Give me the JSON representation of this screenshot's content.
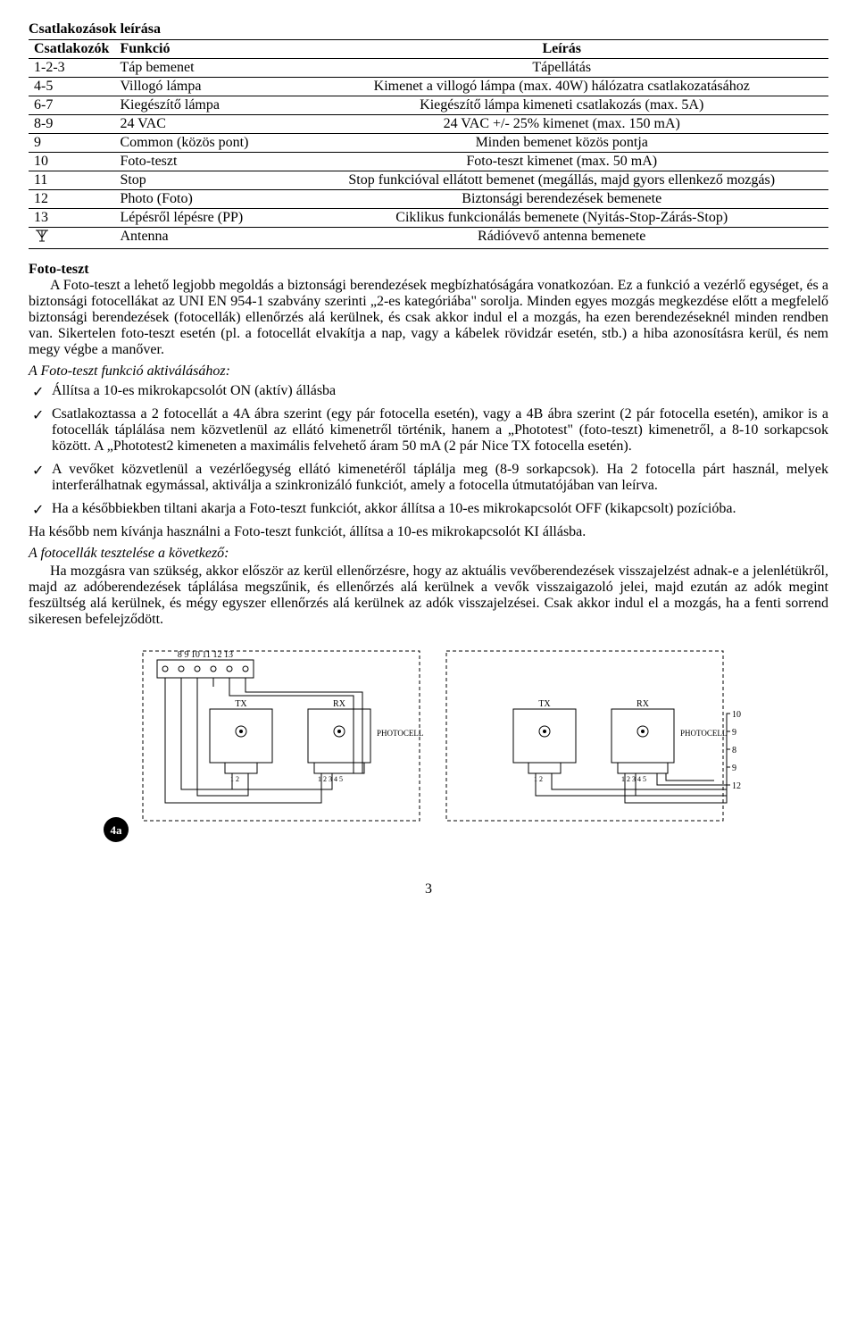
{
  "title": "Csatlakozások leírása",
  "table": {
    "headers": [
      "Csatlakozók",
      "Funkció",
      "Leírás"
    ],
    "rows": [
      {
        "c1": "1-2-3",
        "c2": "Táp bemenet",
        "c3": "Tápellátás"
      },
      {
        "c1": "4-5",
        "c2": "Villogó lámpa",
        "c3": "Kimenet a villogó lámpa (max. 40W) hálózatra csatlakozatásához"
      },
      {
        "c1": "6-7",
        "c2": "Kiegészítő lámpa",
        "c3": "Kiegészítő lámpa kimeneti csatlakozás (max. 5A)"
      },
      {
        "c1": "8-9",
        "c2": "24 VAC",
        "c3": "24 VAC +/- 25% kimenet (max. 150 mA)"
      },
      {
        "c1": "9",
        "c2": "Common (közös pont)",
        "c3": "Minden bemenet közös pontja"
      },
      {
        "c1": "10",
        "c2": "Foto-teszt",
        "c3": "Foto-teszt kimenet (max. 50 mA)"
      },
      {
        "c1": "11",
        "c2": "Stop",
        "c3": "Stop funkcióval ellátott bemenet (megállás, majd gyors ellenkező mozgás)"
      },
      {
        "c1": "12",
        "c2": "Photo (Foto)",
        "c3": "Biztonsági berendezések bemenete"
      },
      {
        "c1": "13",
        "c2": "Lépésről lépésre (PP)",
        "c3": "Ciklikus funkcionálás bemenete (Nyitás-Stop-Zárás-Stop)"
      },
      {
        "c1": "__ANTENNA__",
        "c2": "Antenna",
        "c3": "Rádióvevő antenna bemenete"
      }
    ]
  },
  "foto_heading": "Foto-teszt",
  "foto_p1": "A Foto-teszt a lehető legjobb megoldás a biztonsági berendezések megbízhatóságára vonatkozóan. Ez a funkció a vezérlő egységet, és a biztonsági fotocellákat az UNI EN 954-1 szabvány szerinti „2-es kategóriába\" sorolja. Minden egyes mozgás megkezdése előtt a megfelelő biztonsági berendezések (fotocellák) ellenőrzés alá kerülnek, és csak akkor indul el a mozgás, ha ezen berendezéseknél minden rendben van. Sikertelen foto-teszt esetén (pl. a fotocellát elvakítja a nap, vagy a kábelek rövidzár esetén, stb.) a hiba azonosításra kerül, és nem megy végbe a manőver.",
  "activ_title": "A Foto-teszt funkció aktiválásához:",
  "activ_items": [
    "Állítsa a 10-es mikrokapcsolót ON (aktív) állásba",
    "Csatlakoztassa a 2 fotocellát a 4A ábra szerint (egy pár fotocella esetén), vagy a 4B ábra szerint (2 pár fotocella esetén), amikor is a fotocellák táplálása nem közvetlenül az ellátó kimenetről történik, hanem a „Phototest\" (foto-teszt) kimenetről, a 8-10 sorkapcsok között. A „Phototest2 kimeneten a maximális felvehető áram 50 mA (2 pár Nice TX fotocella esetén).",
    "A vevőket közvetlenül a vezérlőegység ellátó kimenetéről táplálja meg (8-9 sorkapcsok). Ha 2 fotocella párt használ, melyek interferálhatnak egymással, aktiválja a szinkronizáló funkciót, amely a fotocella útmutatójában van leírva.",
    "Ha a későbbiekben tiltani akarja a Foto-teszt funkciót, akkor állítsa a 10-es mikrokapcsolót OFF (kikapcsolt) pozícióba."
  ],
  "after_list": "Ha később nem kívánja használni a Foto-teszt funkciót, állítsa a 10-es mikrokapcsolót KI állásba.",
  "test_title": "A fotocellák tesztelése a következő:",
  "test_p": "Ha mozgásra van szükség, akkor először az kerül ellenőrzésre, hogy az aktuális vevőberendezések visszajelzést adnak-e a jelenlétükről, majd az adóberendezések táplálása megszűnik, és ellenőrzés alá kerülnek a vevők visszaigazoló jelei, majd ezután az adók megint feszültség alá kerülnek, és mégy egyszer ellenőrzés alá kerülnek az adók visszajelzései. Csak akkor indul el a mozgás, ha a fenti sorrend sikeresen befelejződött.",
  "diagram": {
    "label_4a": "4a",
    "terminals_a": "8  9 10 11 12 13",
    "tx": "TX",
    "rx": "RX",
    "photocell": "PHOTOCELL",
    "term_right": [
      "10",
      "9",
      "8",
      "9",
      "12"
    ]
  },
  "page_number": "3"
}
